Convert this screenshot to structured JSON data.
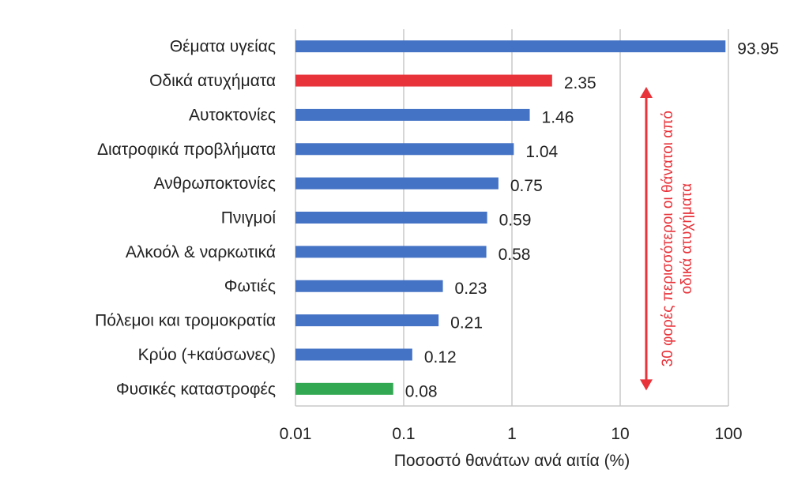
{
  "chart_data": {
    "type": "bar",
    "orientation": "horizontal",
    "xscale": "log",
    "xlim": [
      0.01,
      100
    ],
    "xticks": [
      "0.01",
      "0.1",
      "1",
      "10",
      "100"
    ],
    "xlabel": "Ποσοστό θανάτων ανά αιτία (%)",
    "grid": "vertical",
    "categories": [
      "Θέματα υγείας",
      "Οδικά ατυχήματα",
      "Αυτοκτονίες",
      "Διατροφικά προβλήματα",
      "Ανθρωποκτονίες",
      "Πνιγμοί",
      "Αλκοόλ & ναρκωτικά",
      "Φωτιές",
      "Πόλεμοι και τρομοκρατία",
      "Κρύο (+καύσωνες)",
      "Φυσικές καταστροφές"
    ],
    "values": [
      93.95,
      2.35,
      1.46,
      1.04,
      0.75,
      0.59,
      0.58,
      0.23,
      0.21,
      0.12,
      0.08
    ],
    "value_labels": [
      "93.95",
      "2.35",
      "1.46",
      "1.04",
      "0.75",
      "0.59",
      "0.58",
      "0.23",
      "0.21",
      "0.12",
      "0.08"
    ],
    "colors": [
      "#4472c4",
      "#e8333a",
      "#4472c4",
      "#4472c4",
      "#4472c4",
      "#4472c4",
      "#4472c4",
      "#4472c4",
      "#4472c4",
      "#4472c4",
      "#33a852"
    ],
    "annotation": {
      "lines": [
        "30 φορές περισσότεροι οι θάνατοι από",
        "οδικά ατυχήματα"
      ],
      "color": "#e8333a",
      "spans_from": "Οδικά ατυχήματα",
      "spans_to": "Φυσικές καταστροφές"
    }
  }
}
